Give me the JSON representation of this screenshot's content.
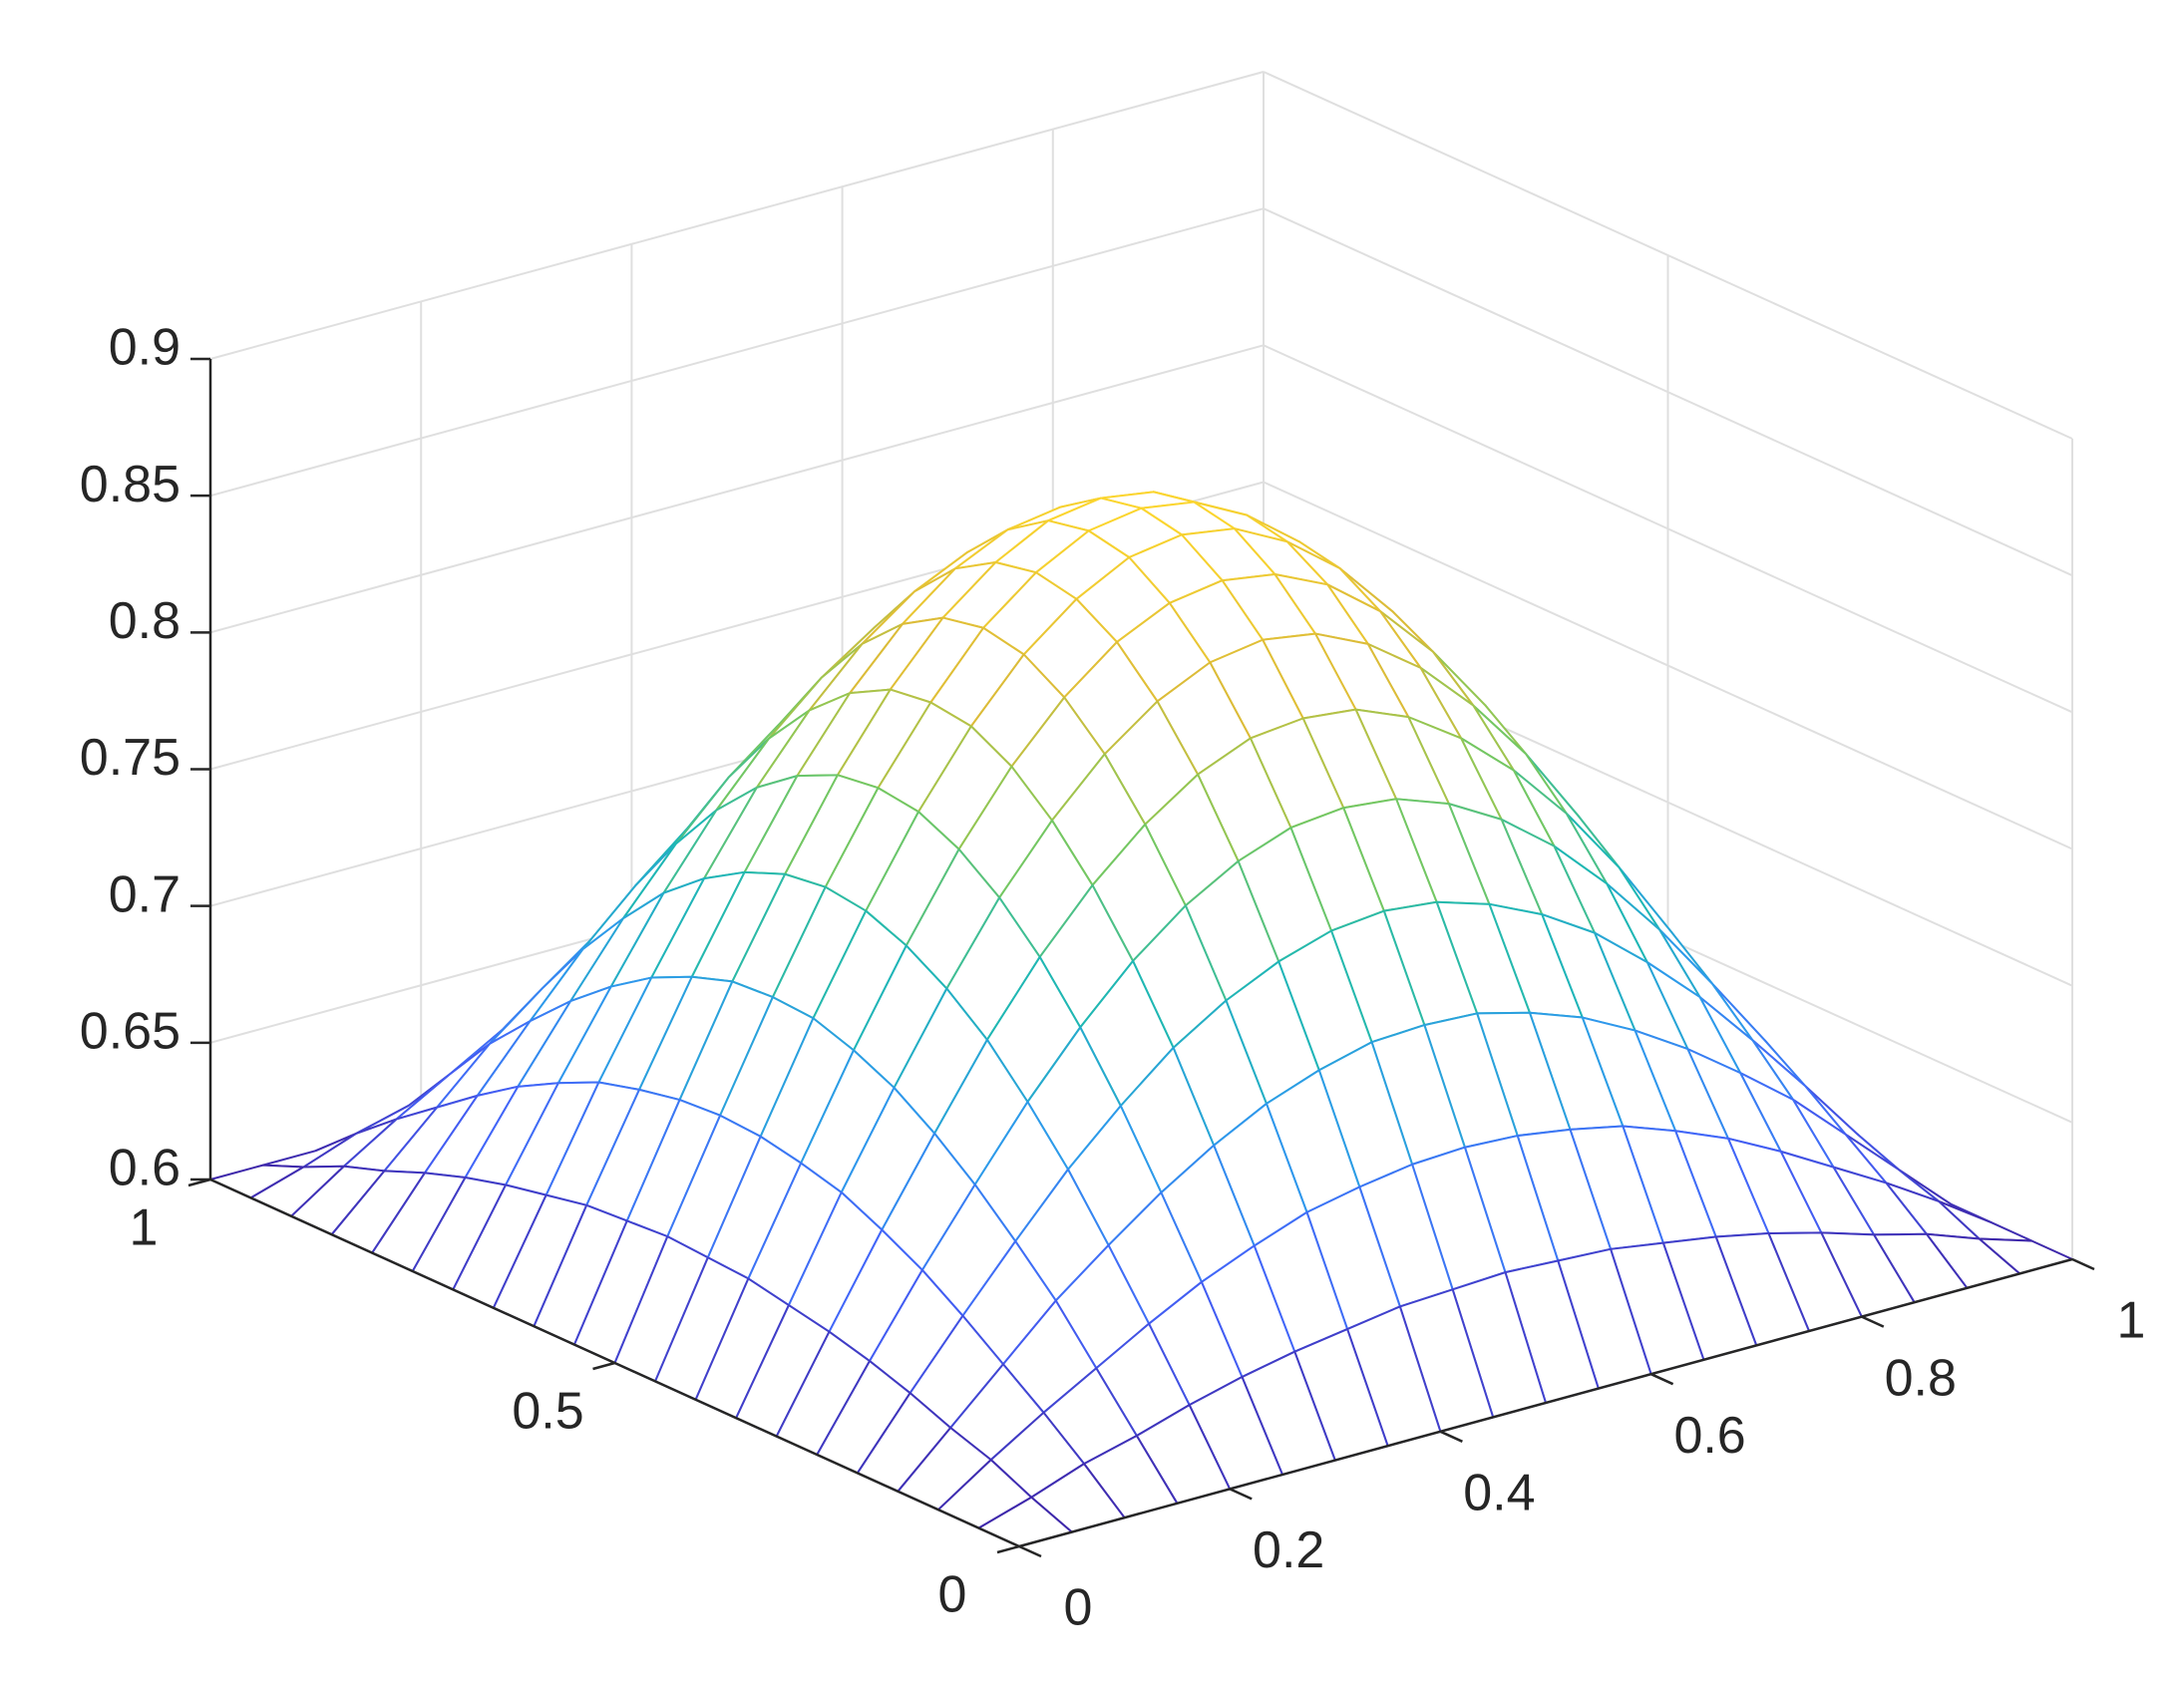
{
  "chart_data": {
    "type": "surface",
    "x": [
      0,
      0.05,
      0.1,
      0.15,
      0.2,
      0.25,
      0.3,
      0.35,
      0.4,
      0.45,
      0.5,
      0.55,
      0.6,
      0.65,
      0.7,
      0.75,
      0.8,
      0.85,
      0.9,
      0.95,
      1
    ],
    "y": [
      0,
      0.05,
      0.1,
      0.15,
      0.2,
      0.25,
      0.3,
      0.35,
      0.4,
      0.45,
      0.5,
      0.55,
      0.6,
      0.65,
      0.7,
      0.75,
      0.8,
      0.85,
      0.9,
      0.95,
      1
    ],
    "z": [
      [
        0.6,
        0.6,
        0.6,
        0.6,
        0.6,
        0.6,
        0.6,
        0.6,
        0.6,
        0.6,
        0.6,
        0.6,
        0.6,
        0.6,
        0.6,
        0.6,
        0.6,
        0.6,
        0.6,
        0.6,
        0.6
      ],
      [
        0.6,
        0.606,
        0.613,
        0.618,
        0.624,
        0.629,
        0.633,
        0.636,
        0.639,
        0.64,
        0.641,
        0.64,
        0.639,
        0.636,
        0.633,
        0.629,
        0.624,
        0.618,
        0.613,
        0.606,
        0.6
      ],
      [
        0.6,
        0.613,
        0.625,
        0.636,
        0.647,
        0.657,
        0.665,
        0.672,
        0.676,
        0.679,
        0.68,
        0.679,
        0.676,
        0.672,
        0.665,
        0.657,
        0.647,
        0.636,
        0.625,
        0.613,
        0.6
      ],
      [
        0.6,
        0.618,
        0.636,
        0.654,
        0.669,
        0.683,
        0.695,
        0.705,
        0.712,
        0.717,
        0.718,
        0.717,
        0.712,
        0.705,
        0.695,
        0.683,
        0.669,
        0.654,
        0.636,
        0.618,
        0.6
      ],
      [
        0.6,
        0.624,
        0.647,
        0.669,
        0.69,
        0.708,
        0.724,
        0.736,
        0.745,
        0.751,
        0.753,
        0.751,
        0.745,
        0.736,
        0.724,
        0.708,
        0.69,
        0.669,
        0.647,
        0.624,
        0.6
      ],
      [
        0.6,
        0.629,
        0.657,
        0.683,
        0.708,
        0.73,
        0.749,
        0.764,
        0.775,
        0.782,
        0.784,
        0.782,
        0.775,
        0.764,
        0.749,
        0.73,
        0.708,
        0.683,
        0.657,
        0.629,
        0.6
      ],
      [
        0.6,
        0.633,
        0.665,
        0.695,
        0.724,
        0.749,
        0.77,
        0.787,
        0.8,
        0.808,
        0.81,
        0.808,
        0.8,
        0.787,
        0.77,
        0.749,
        0.724,
        0.695,
        0.665,
        0.633,
        0.6
      ],
      [
        0.6,
        0.636,
        0.672,
        0.705,
        0.736,
        0.764,
        0.787,
        0.806,
        0.82,
        0.829,
        0.832,
        0.829,
        0.82,
        0.806,
        0.787,
        0.764,
        0.736,
        0.705,
        0.672,
        0.636,
        0.6
      ],
      [
        0.6,
        0.639,
        0.676,
        0.712,
        0.745,
        0.775,
        0.8,
        0.82,
        0.835,
        0.844,
        0.847,
        0.844,
        0.835,
        0.82,
        0.8,
        0.775,
        0.745,
        0.712,
        0.676,
        0.639,
        0.6
      ],
      [
        0.6,
        0.64,
        0.679,
        0.717,
        0.751,
        0.782,
        0.808,
        0.829,
        0.844,
        0.854,
        0.857,
        0.854,
        0.844,
        0.829,
        0.808,
        0.782,
        0.751,
        0.717,
        0.679,
        0.64,
        0.6
      ],
      [
        0.6,
        0.641,
        0.68,
        0.718,
        0.753,
        0.784,
        0.81,
        0.832,
        0.847,
        0.857,
        0.86,
        0.857,
        0.847,
        0.832,
        0.81,
        0.784,
        0.753,
        0.718,
        0.68,
        0.641,
        0.6
      ],
      [
        0.6,
        0.64,
        0.679,
        0.717,
        0.751,
        0.782,
        0.808,
        0.829,
        0.844,
        0.854,
        0.857,
        0.854,
        0.844,
        0.829,
        0.808,
        0.782,
        0.751,
        0.717,
        0.679,
        0.64,
        0.6
      ],
      [
        0.6,
        0.639,
        0.676,
        0.712,
        0.745,
        0.775,
        0.8,
        0.82,
        0.835,
        0.844,
        0.847,
        0.844,
        0.835,
        0.82,
        0.8,
        0.775,
        0.745,
        0.712,
        0.676,
        0.639,
        0.6
      ],
      [
        0.6,
        0.636,
        0.672,
        0.705,
        0.736,
        0.764,
        0.787,
        0.806,
        0.82,
        0.829,
        0.832,
        0.829,
        0.82,
        0.806,
        0.787,
        0.764,
        0.736,
        0.705,
        0.672,
        0.636,
        0.6
      ],
      [
        0.6,
        0.633,
        0.665,
        0.695,
        0.724,
        0.749,
        0.77,
        0.787,
        0.8,
        0.808,
        0.81,
        0.808,
        0.8,
        0.787,
        0.77,
        0.749,
        0.724,
        0.695,
        0.665,
        0.633,
        0.6
      ],
      [
        0.6,
        0.629,
        0.657,
        0.683,
        0.708,
        0.73,
        0.749,
        0.764,
        0.775,
        0.782,
        0.784,
        0.782,
        0.775,
        0.764,
        0.749,
        0.73,
        0.708,
        0.683,
        0.657,
        0.629,
        0.6
      ],
      [
        0.6,
        0.624,
        0.647,
        0.669,
        0.69,
        0.708,
        0.724,
        0.736,
        0.745,
        0.751,
        0.753,
        0.751,
        0.745,
        0.736,
        0.724,
        0.708,
        0.69,
        0.669,
        0.647,
        0.624,
        0.6
      ],
      [
        0.6,
        0.618,
        0.636,
        0.654,
        0.669,
        0.683,
        0.695,
        0.705,
        0.712,
        0.717,
        0.718,
        0.717,
        0.712,
        0.705,
        0.695,
        0.683,
        0.669,
        0.654,
        0.636,
        0.618,
        0.6
      ],
      [
        0.6,
        0.613,
        0.625,
        0.636,
        0.647,
        0.657,
        0.665,
        0.672,
        0.676,
        0.679,
        0.68,
        0.679,
        0.676,
        0.672,
        0.665,
        0.657,
        0.647,
        0.636,
        0.625,
        0.613,
        0.6
      ],
      [
        0.6,
        0.606,
        0.613,
        0.618,
        0.624,
        0.629,
        0.633,
        0.636,
        0.639,
        0.64,
        0.641,
        0.64,
        0.639,
        0.636,
        0.633,
        0.629,
        0.624,
        0.618,
        0.613,
        0.606,
        0.6
      ],
      [
        0.6,
        0.6,
        0.6,
        0.6,
        0.6,
        0.6,
        0.6,
        0.6,
        0.6,
        0.6,
        0.6,
        0.6,
        0.6,
        0.6,
        0.6,
        0.6,
        0.6,
        0.6,
        0.6,
        0.6,
        0.6
      ]
    ],
    "xlim": [
      0,
      1
    ],
    "ylim": [
      0,
      1
    ],
    "zlim": [
      0.6,
      0.9
    ],
    "xticks": [
      0,
      0.2,
      0.4,
      0.6,
      0.8,
      1
    ],
    "yticks": [
      0,
      0.5,
      1
    ],
    "zticks": [
      0.6,
      0.65,
      0.7,
      0.75,
      0.8,
      0.85,
      0.9
    ],
    "grid": true,
    "colormap": [
      "#3e26a8",
      "#4462f9",
      "#2e99ec",
      "#1fb8b3",
      "#7cc95b",
      "#dcbc38",
      "#fbd52f",
      "#f9fb14"
    ]
  }
}
